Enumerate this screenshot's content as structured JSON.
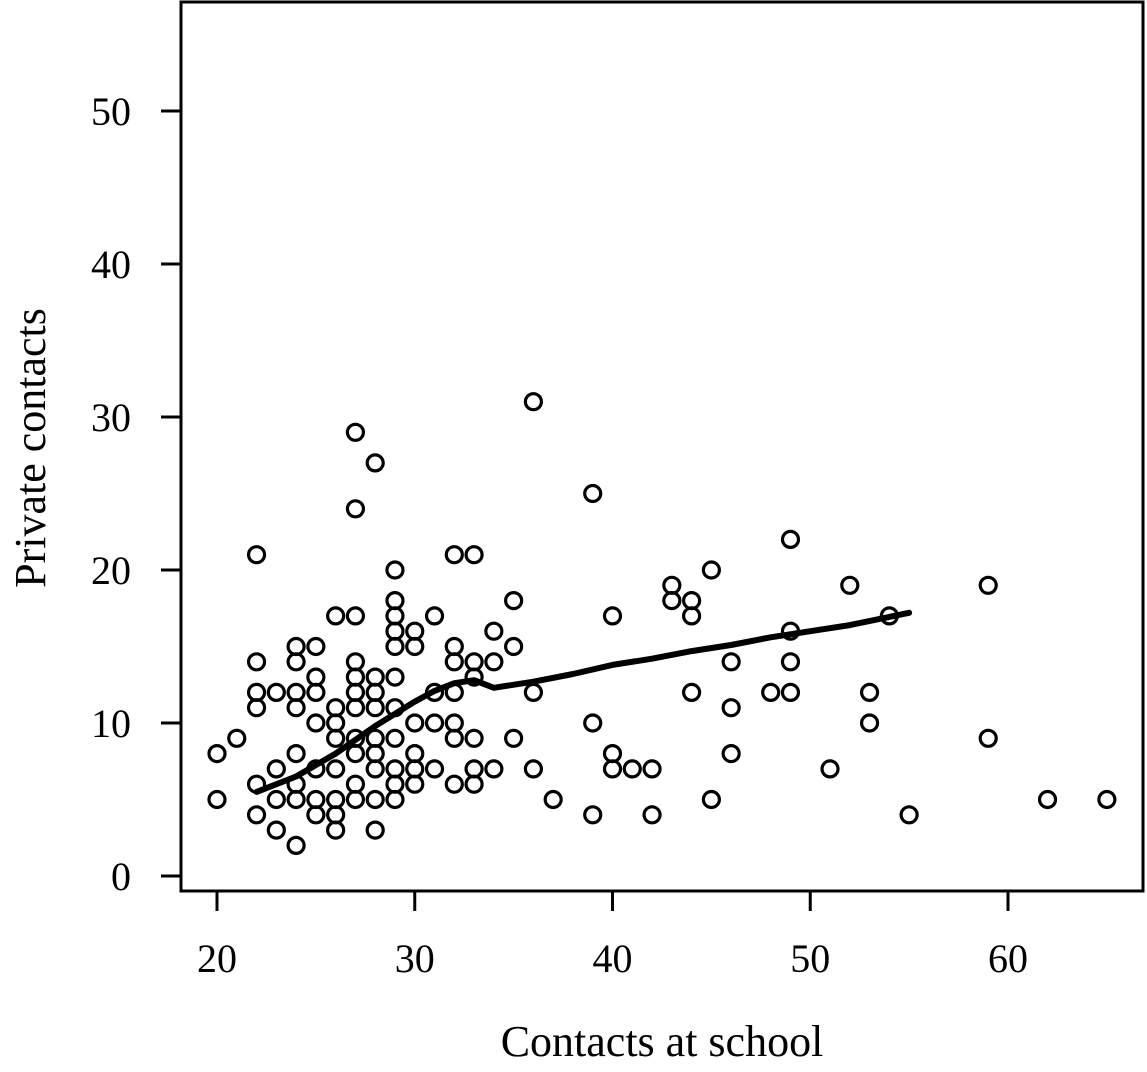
{
  "chart_data": {
    "type": "scatter",
    "title": "",
    "xlabel": "Contacts at school",
    "ylabel": "Private contacts",
    "xlim": [
      18,
      66.5
    ],
    "ylim": [
      -1,
      57
    ],
    "xticks": [
      20,
      30,
      40,
      50,
      60
    ],
    "yticks": [
      0,
      10,
      20,
      30,
      40,
      50
    ],
    "xtick_labels": [
      "20",
      "30",
      "40",
      "50",
      "60"
    ],
    "ytick_labels": [
      "0",
      "10",
      "20",
      "30",
      "40",
      "50"
    ],
    "grid": false,
    "legend": "none",
    "colors": {
      "points": "#000000",
      "line": "#000000",
      "axes": "#000000"
    },
    "points": [
      [
        20,
        8
      ],
      [
        20,
        5
      ],
      [
        21,
        9
      ],
      [
        22,
        21
      ],
      [
        22,
        14
      ],
      [
        22,
        12
      ],
      [
        22,
        11
      ],
      [
        22,
        6
      ],
      [
        22,
        4
      ],
      [
        23,
        12
      ],
      [
        23,
        7
      ],
      [
        23,
        5
      ],
      [
        23,
        3
      ],
      [
        24,
        15
      ],
      [
        24,
        14
      ],
      [
        24,
        12
      ],
      [
        24,
        11
      ],
      [
        24,
        8
      ],
      [
        24,
        6
      ],
      [
        24,
        5
      ],
      [
        24,
        2
      ],
      [
        25,
        15
      ],
      [
        25,
        13
      ],
      [
        25,
        12
      ],
      [
        25,
        10
      ],
      [
        25,
        7
      ],
      [
        25,
        5
      ],
      [
        25,
        4
      ],
      [
        26,
        17
      ],
      [
        26,
        11
      ],
      [
        26,
        10
      ],
      [
        26,
        9
      ],
      [
        26,
        7
      ],
      [
        26,
        5
      ],
      [
        26,
        4
      ],
      [
        26,
        3
      ],
      [
        27,
        29
      ],
      [
        27,
        24
      ],
      [
        27,
        17
      ],
      [
        27,
        14
      ],
      [
        27,
        13
      ],
      [
        27,
        12
      ],
      [
        27,
        11
      ],
      [
        27,
        9
      ],
      [
        27,
        8
      ],
      [
        27,
        6
      ],
      [
        27,
        5
      ],
      [
        28,
        27
      ],
      [
        28,
        13
      ],
      [
        28,
        12
      ],
      [
        28,
        11
      ],
      [
        28,
        9
      ],
      [
        28,
        8
      ],
      [
        28,
        7
      ],
      [
        28,
        5
      ],
      [
        28,
        3
      ],
      [
        29,
        20
      ],
      [
        29,
        18
      ],
      [
        29,
        17
      ],
      [
        29,
        16
      ],
      [
        29,
        15
      ],
      [
        29,
        13
      ],
      [
        29,
        11
      ],
      [
        29,
        9
      ],
      [
        29,
        7
      ],
      [
        29,
        6
      ],
      [
        29,
        5
      ],
      [
        30,
        16
      ],
      [
        30,
        15
      ],
      [
        30,
        10
      ],
      [
        30,
        8
      ],
      [
        30,
        7
      ],
      [
        30,
        6
      ],
      [
        31,
        17
      ],
      [
        31,
        12
      ],
      [
        31,
        10
      ],
      [
        31,
        7
      ],
      [
        32,
        21
      ],
      [
        32,
        15
      ],
      [
        32,
        14
      ],
      [
        32,
        12
      ],
      [
        32,
        10
      ],
      [
        32,
        9
      ],
      [
        32,
        6
      ],
      [
        33,
        21
      ],
      [
        33,
        14
      ],
      [
        33,
        13
      ],
      [
        33,
        9
      ],
      [
        33,
        7
      ],
      [
        33,
        6
      ],
      [
        34,
        16
      ],
      [
        34,
        14
      ],
      [
        34,
        7
      ],
      [
        35,
        18
      ],
      [
        35,
        15
      ],
      [
        35,
        9
      ],
      [
        36,
        31
      ],
      [
        36,
        12
      ],
      [
        36,
        7
      ],
      [
        37,
        5
      ],
      [
        39,
        25
      ],
      [
        39,
        10
      ],
      [
        39,
        4
      ],
      [
        40,
        17
      ],
      [
        40,
        8
      ],
      [
        40,
        7
      ],
      [
        41,
        7
      ],
      [
        42,
        7
      ],
      [
        42,
        4
      ],
      [
        43,
        19
      ],
      [
        43,
        18
      ],
      [
        44,
        18
      ],
      [
        44,
        17
      ],
      [
        44,
        12
      ],
      [
        45,
        20
      ],
      [
        45,
        5
      ],
      [
        46,
        14
      ],
      [
        46,
        11
      ],
      [
        46,
        8
      ],
      [
        48,
        12
      ],
      [
        49,
        22
      ],
      [
        49,
        16
      ],
      [
        49,
        14
      ],
      [
        49,
        12
      ],
      [
        51,
        7
      ],
      [
        52,
        19
      ],
      [
        53,
        12
      ],
      [
        53,
        10
      ],
      [
        54,
        17
      ],
      [
        55,
        4
      ],
      [
        59,
        19
      ],
      [
        59,
        9
      ],
      [
        62,
        5
      ],
      [
        65,
        5
      ]
    ],
    "smooth_line": [
      [
        22,
        5.5
      ],
      [
        24,
        6.5
      ],
      [
        26,
        8
      ],
      [
        28,
        9.8
      ],
      [
        30,
        11.4
      ],
      [
        31,
        12.1
      ],
      [
        32,
        12.6
      ],
      [
        33,
        12.8
      ],
      [
        34,
        12.3
      ],
      [
        36,
        12.7
      ],
      [
        38,
        13.2
      ],
      [
        40,
        13.8
      ],
      [
        42,
        14.2
      ],
      [
        44,
        14.7
      ],
      [
        46,
        15.1
      ],
      [
        48,
        15.6
      ],
      [
        50,
        16
      ],
      [
        52,
        16.4
      ],
      [
        55,
        17.2
      ]
    ]
  }
}
